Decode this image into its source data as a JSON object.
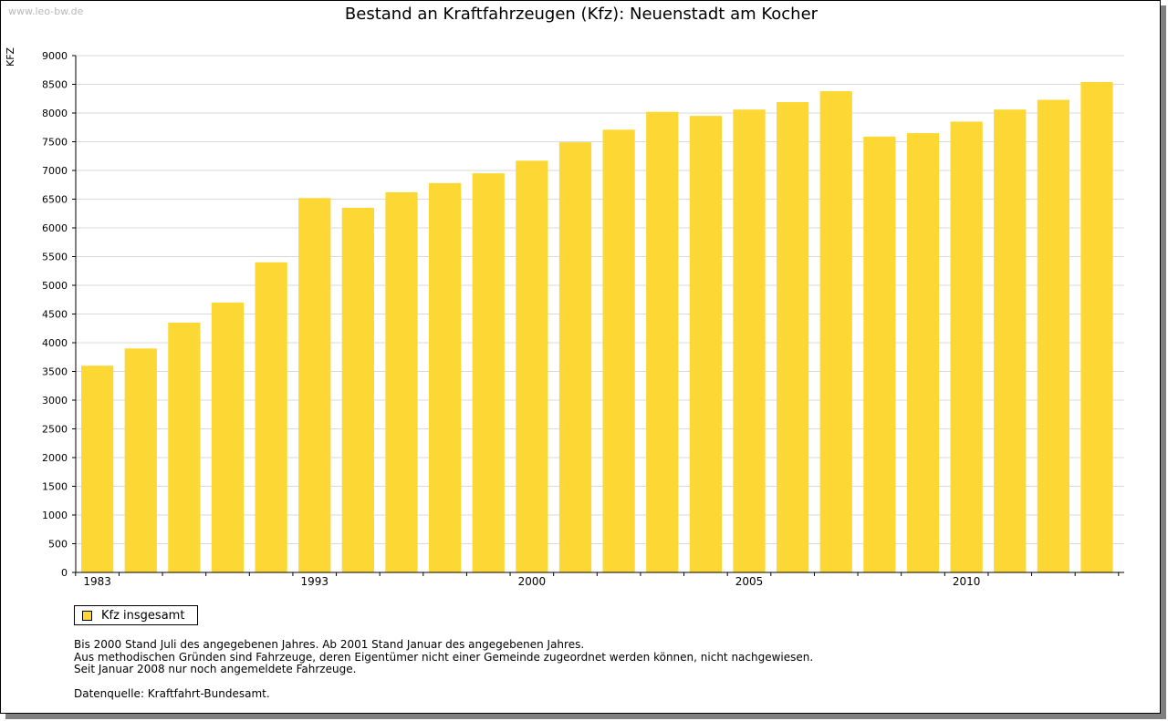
{
  "page": {
    "watermark": "www.leo-bw.de",
    "legend_label": "Kfz insgesamt",
    "notes": [
      "Bis 2000 Stand Juli des angegebenen Jahres. Ab 2001 Stand Januar des angegebenen Jahres.",
      "Aus methodischen Gründen sind Fahrzeuge, deren Eigentümer nicht einer Gemeinde zugeordnet werden können, nicht nachgewiesen.",
      "Seit Januar 2008 nur noch angemeldete Fahrzeuge."
    ],
    "source": "Datenquelle: Kraftfahrt-Bundesamt."
  },
  "colors": {
    "bar": "#fdd835",
    "grid": "#d9d9d9",
    "axis": "#000000"
  },
  "chart_data": {
    "type": "bar",
    "title": "Bestand an Kraftfahrzeugen (Kfz): Neuenstadt am Kocher",
    "xlabel": "",
    "ylabel": "KFZ",
    "ylim": [
      0,
      9000
    ],
    "yticks": [
      0,
      500,
      1000,
      1500,
      2000,
      2500,
      3000,
      3500,
      4000,
      4500,
      5000,
      5500,
      6000,
      6500,
      7000,
      7500,
      8000,
      8500,
      9000
    ],
    "grid": true,
    "legend": "bottom-left",
    "categories": [
      "1983",
      "",
      "",
      "",
      "",
      "1993",
      "",
      "",
      "",
      "",
      "2000",
      "",
      "",
      "",
      "",
      "2005",
      "",
      "",
      "",
      "",
      "2010",
      "",
      "",
      ""
    ],
    "series": [
      {
        "name": "Kfz insgesamt",
        "values": [
          3600,
          3900,
          4350,
          4700,
          5400,
          6520,
          6350,
          6620,
          6780,
          6950,
          7170,
          7490,
          7710,
          8020,
          7950,
          8060,
          8190,
          8380,
          7590,
          7650,
          7850,
          8060,
          8230,
          8540
        ]
      }
    ]
  }
}
